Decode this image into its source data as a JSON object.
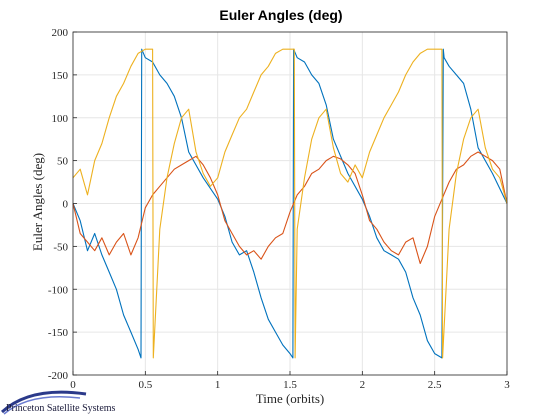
{
  "chart_data": {
    "type": "line",
    "title": "Euler Angles (deg)",
    "xlabel": "Time (orbits)",
    "ylabel": "Euler Angles (deg)",
    "xlim": [
      0,
      3
    ],
    "ylim": [
      -200,
      200
    ],
    "grid": true,
    "xticks": [
      "0",
      "0.5",
      "1",
      "1.5",
      "2",
      "2.5",
      "3"
    ],
    "yticks": [
      "-200",
      "-150",
      "-100",
      "-50",
      "0",
      "50",
      "100",
      "150",
      "200"
    ],
    "colors": [
      "#0072BD",
      "#D95319",
      "#EDB120"
    ],
    "series": [
      {
        "color": "#0072BD",
        "x": [
          0,
          0.05,
          0.1,
          0.15,
          0.2,
          0.25,
          0.3,
          0.35,
          0.4,
          0.45,
          0.47,
          0.475,
          0.5,
          0.55,
          0.6,
          0.65,
          0.7,
          0.75,
          0.8,
          0.9,
          1.0,
          1.05,
          1.1,
          1.15,
          1.2,
          1.25,
          1.3,
          1.35,
          1.4,
          1.45,
          1.5,
          1.52,
          1.525,
          1.55,
          1.6,
          1.65,
          1.7,
          1.75,
          1.8,
          1.9,
          2.0,
          2.05,
          2.1,
          2.15,
          2.2,
          2.25,
          2.3,
          2.35,
          2.4,
          2.45,
          2.5,
          2.55,
          2.56,
          2.565,
          2.6,
          2.65,
          2.7,
          2.75,
          2.8,
          2.9,
          3.0
        ],
        "y": [
          0,
          -20,
          -55,
          -35,
          -60,
          -80,
          -100,
          -130,
          -150,
          -170,
          -180,
          180,
          170,
          165,
          150,
          140,
          125,
          100,
          60,
          30,
          5,
          -15,
          -45,
          -60,
          -55,
          -80,
          -110,
          -135,
          -150,
          -165,
          -175,
          -180,
          180,
          170,
          165,
          150,
          140,
          115,
          75,
          35,
          5,
          -15,
          -40,
          -55,
          -60,
          -65,
          -80,
          -110,
          -130,
          -160,
          -175,
          -180,
          180,
          170,
          160,
          150,
          140,
          110,
          65,
          35,
          0
        ]
      },
      {
        "color": "#D95319",
        "x": [
          0,
          0.05,
          0.1,
          0.15,
          0.2,
          0.25,
          0.3,
          0.35,
          0.4,
          0.45,
          0.5,
          0.55,
          0.6,
          0.65,
          0.7,
          0.75,
          0.8,
          0.85,
          0.9,
          0.95,
          1.0,
          1.05,
          1.1,
          1.15,
          1.2,
          1.25,
          1.3,
          1.35,
          1.4,
          1.45,
          1.5,
          1.55,
          1.6,
          1.65,
          1.7,
          1.75,
          1.8,
          1.85,
          1.9,
          1.95,
          2.0,
          2.05,
          2.1,
          2.15,
          2.2,
          2.25,
          2.3,
          2.35,
          2.4,
          2.45,
          2.5,
          2.55,
          2.6,
          2.65,
          2.7,
          2.75,
          2.8,
          2.85,
          2.9,
          2.95,
          3.0
        ],
        "y": [
          0,
          -35,
          -45,
          -55,
          -40,
          -60,
          -45,
          -35,
          -60,
          -40,
          -5,
          10,
          20,
          30,
          40,
          45,
          50,
          55,
          45,
          30,
          10,
          -20,
          -35,
          -50,
          -60,
          -55,
          -65,
          -50,
          -40,
          -35,
          -10,
          10,
          20,
          35,
          40,
          50,
          55,
          52,
          45,
          35,
          10,
          -20,
          -30,
          -45,
          -55,
          -60,
          -45,
          -40,
          -70,
          -50,
          -15,
          5,
          25,
          40,
          45,
          55,
          60,
          55,
          50,
          40,
          0
        ]
      },
      {
        "color": "#EDB120",
        "x": [
          0,
          0.05,
          0.1,
          0.15,
          0.2,
          0.25,
          0.3,
          0.35,
          0.4,
          0.45,
          0.5,
          0.55,
          0.555,
          0.6,
          0.65,
          0.7,
          0.75,
          0.8,
          0.85,
          0.9,
          0.95,
          1.0,
          1.05,
          1.1,
          1.15,
          1.2,
          1.25,
          1.3,
          1.35,
          1.4,
          1.45,
          1.5,
          1.53,
          1.535,
          1.55,
          1.6,
          1.65,
          1.7,
          1.75,
          1.8,
          1.85,
          1.9,
          1.95,
          2.0,
          2.05,
          2.1,
          2.15,
          2.2,
          2.25,
          2.3,
          2.35,
          2.4,
          2.45,
          2.5,
          2.55,
          2.555,
          2.6,
          2.65,
          2.7,
          2.75,
          2.8,
          2.85,
          2.9,
          2.95,
          3.0
        ],
        "y": [
          30,
          40,
          10,
          50,
          70,
          100,
          125,
          140,
          160,
          175,
          180,
          180,
          -180,
          -30,
          30,
          70,
          100,
          110,
          60,
          35,
          20,
          30,
          60,
          80,
          100,
          110,
          130,
          150,
          160,
          175,
          180,
          180,
          180,
          -180,
          -30,
          30,
          75,
          100,
          110,
          65,
          35,
          25,
          45,
          30,
          60,
          80,
          100,
          115,
          130,
          150,
          165,
          175,
          180,
          180,
          180,
          -180,
          -30,
          35,
          75,
          100,
          110,
          65,
          40,
          30,
          0
        ]
      }
    ]
  },
  "branding": {
    "text": "Princeton Satellite Systems"
  }
}
